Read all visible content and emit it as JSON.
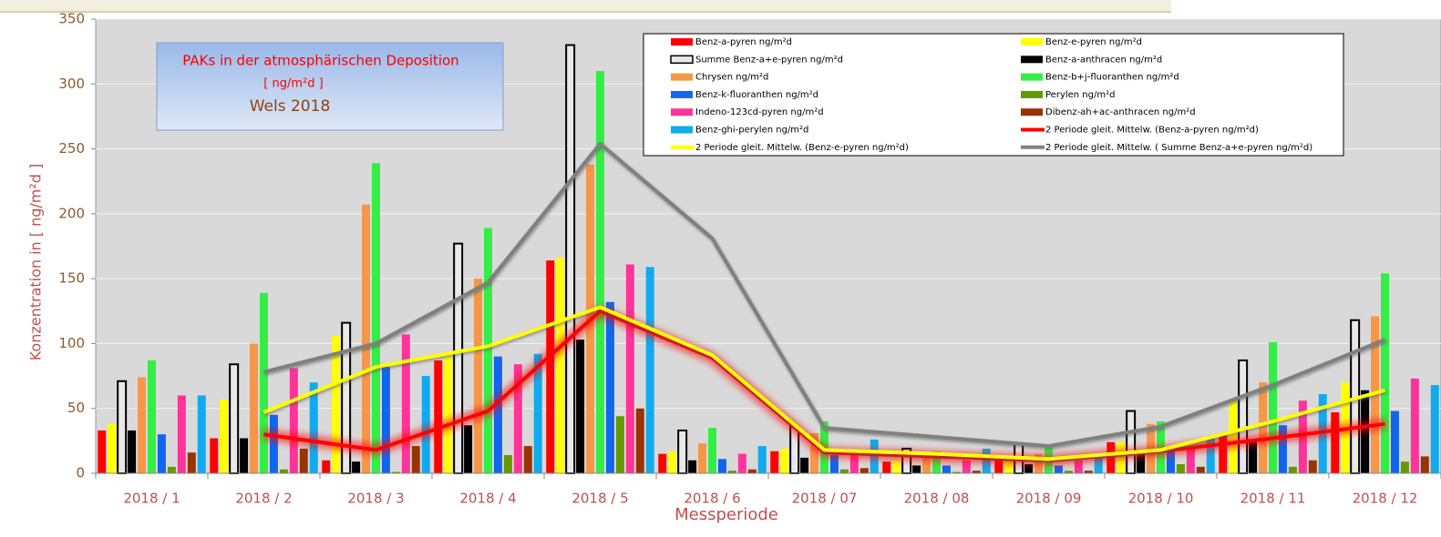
{
  "chart_data": {
    "type": "bar",
    "title": [
      "PAKs in der atmosphärischen Deposition",
      "[ ng/m²d ]",
      "Wels 2018"
    ],
    "x_label": "Messperiode",
    "y_label": "Konzentration in [ ng/m²d ]",
    "categories": [
      "2018 / 1",
      "2018 / 2",
      "2018 / 3",
      "2018 / 4",
      "2018 / 5",
      "2018 / 6",
      "2018 / 07",
      "2018 / 08",
      "2018 / 09",
      "2018 / 10",
      "2018 / 11",
      "2018 / 12"
    ],
    "ylim": [
      0,
      350
    ],
    "yticks": [
      0,
      50,
      100,
      150,
      200,
      250,
      300,
      350
    ],
    "grid": true,
    "legend": "top-right",
    "series": [
      {
        "name": "Benz-a-pyren ng/m²d",
        "color": "#ff0000",
        "values": [
          33,
          27,
          10,
          87,
          164,
          15,
          17,
          9,
          11,
          24,
          30,
          47
        ]
      },
      {
        "name": "Benz-e-pyren ng/m²d",
        "color": "#ffff00",
        "values": [
          38,
          57,
          106,
          90,
          166,
          17,
          19,
          10,
          12,
          24,
          57,
          70
        ]
      },
      {
        "name": "Summe Benz-a+e-pyren ng/m²d",
        "color": "#e8e8e8",
        "edgecolor": "#000000",
        "values": [
          71,
          84,
          116,
          177,
          330,
          33,
          36,
          19,
          23,
          48,
          87,
          118
        ]
      },
      {
        "name": "Benz-a-anthracen ng/m²d",
        "color": "#000000",
        "values": [
          33,
          27,
          9,
          37,
          103,
          10,
          12,
          6,
          7,
          18,
          26,
          64
        ]
      },
      {
        "name": "Chrysen ng/m²d",
        "color": "#f79646",
        "values": [
          74,
          100,
          207,
          150,
          238,
          23,
          31,
          14,
          15,
          38,
          70,
          121
        ]
      },
      {
        "name": "Benz-b+j-fluoranthen ng/m²d",
        "color": "#33ee44",
        "values": [
          87,
          139,
          239,
          189,
          310,
          35,
          40,
          17,
          20,
          40,
          101,
          154
        ]
      },
      {
        "name": "Benz-k-fluoranthen ng/m²d",
        "color": "#1166ee",
        "values": [
          30,
          45,
          82,
          90,
          132,
          11,
          14,
          6,
          6,
          18,
          37,
          48
        ]
      },
      {
        "name": "Perylen ng/m²d",
        "color": "#669900",
        "values": [
          5,
          3,
          1,
          14,
          44,
          2,
          3,
          1,
          2,
          7,
          5,
          9
        ]
      },
      {
        "name": "Indeno-123cd-pyren ng/m²d",
        "color": "#ff3399",
        "values": [
          60,
          81,
          107,
          84,
          161,
          15,
          18,
          10,
          10,
          20,
          56,
          73
        ]
      },
      {
        "name": "Dibenz-ah+ac-anthracen ng/m²d",
        "color": "#993300",
        "values": [
          16,
          19,
          21,
          21,
          50,
          3,
          4,
          2,
          2,
          5,
          10,
          13
        ]
      },
      {
        "name": "Benz-ghi-perylen ng/m²d",
        "color": "#11aaee",
        "values": [
          60,
          70,
          75,
          92,
          159,
          21,
          26,
          19,
          13,
          28,
          61,
          68
        ]
      },
      {
        "name": "2 Periode gleit. Mittelw. (Benz-a-pyren ng/m²d)",
        "type": "line",
        "color": "#ff0000",
        "glow": true,
        "values": [
          null,
          30,
          18,
          48,
          125,
          89,
          16,
          13,
          10,
          17,
          27,
          38
        ]
      },
      {
        "name": "2 Periode gleit. Mittelw. (Benz-e-pyren ng/m²d)",
        "type": "line",
        "color": "#ffff00",
        "values": [
          null,
          47,
          82,
          98,
          128,
          91,
          18,
          15,
          11,
          18,
          40,
          64
        ]
      },
      {
        "name": "2 Periode gleit. Mittelw. ( Summe Benz-a+e-pyren ng/m²d)",
        "type": "line",
        "color": "#808080",
        "values": [
          null,
          78,
          100,
          147,
          254,
          181,
          35,
          28,
          21,
          36,
          68,
          103
        ]
      }
    ]
  }
}
